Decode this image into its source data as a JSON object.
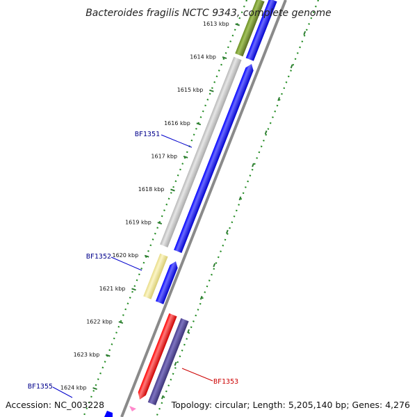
{
  "title": "Bacteroides fragilis NCTC 9343, complete genome",
  "footer": {
    "accession": "Accession: NC_003228",
    "topology": "Topology: circular; Length: 5,205,140 bp; Genes: 4,276"
  },
  "colors": {
    "backbone": "#8a8a8a",
    "dots": "#228b22",
    "tick_mark": "#2e7d32",
    "blue_gene": "#0000ff",
    "red_gene": "#ff0000",
    "olive_gene": "#6b8e23",
    "grey_gene": "#c0c0c0",
    "yellow_gene": "#f0e68c",
    "slate_gene": "#483d8b",
    "label_blue": "#00008b",
    "label_red": "#cc0000"
  },
  "ticks": [
    {
      "kbp": 1613,
      "label": "1613 kbp"
    },
    {
      "kbp": 1614,
      "label": "1614 kbp"
    },
    {
      "kbp": 1615,
      "label": "1615 kbp"
    },
    {
      "kbp": 1616,
      "label": "1616 kbp"
    },
    {
      "kbp": 1617,
      "label": "1617 kbp"
    },
    {
      "kbp": 1618,
      "label": "1618 kbp"
    },
    {
      "kbp": 1619,
      "label": "1619 kbp"
    },
    {
      "kbp": 1620,
      "label": "1620 kbp"
    },
    {
      "kbp": 1621,
      "label": "1621 kbp"
    },
    {
      "kbp": 1622,
      "label": "1622 kbp"
    },
    {
      "kbp": 1623,
      "label": "1623 kbp"
    },
    {
      "kbp": 1624,
      "label": "1624 kbp"
    }
  ],
  "gene_labels": [
    {
      "name": "BF1351",
      "color": "#00008b"
    },
    {
      "name": "BF1352",
      "color": "#00008b"
    },
    {
      "name": "BF1353",
      "color": "#cc0000"
    },
    {
      "name": "BF1355",
      "color": "#00008b"
    }
  ]
}
